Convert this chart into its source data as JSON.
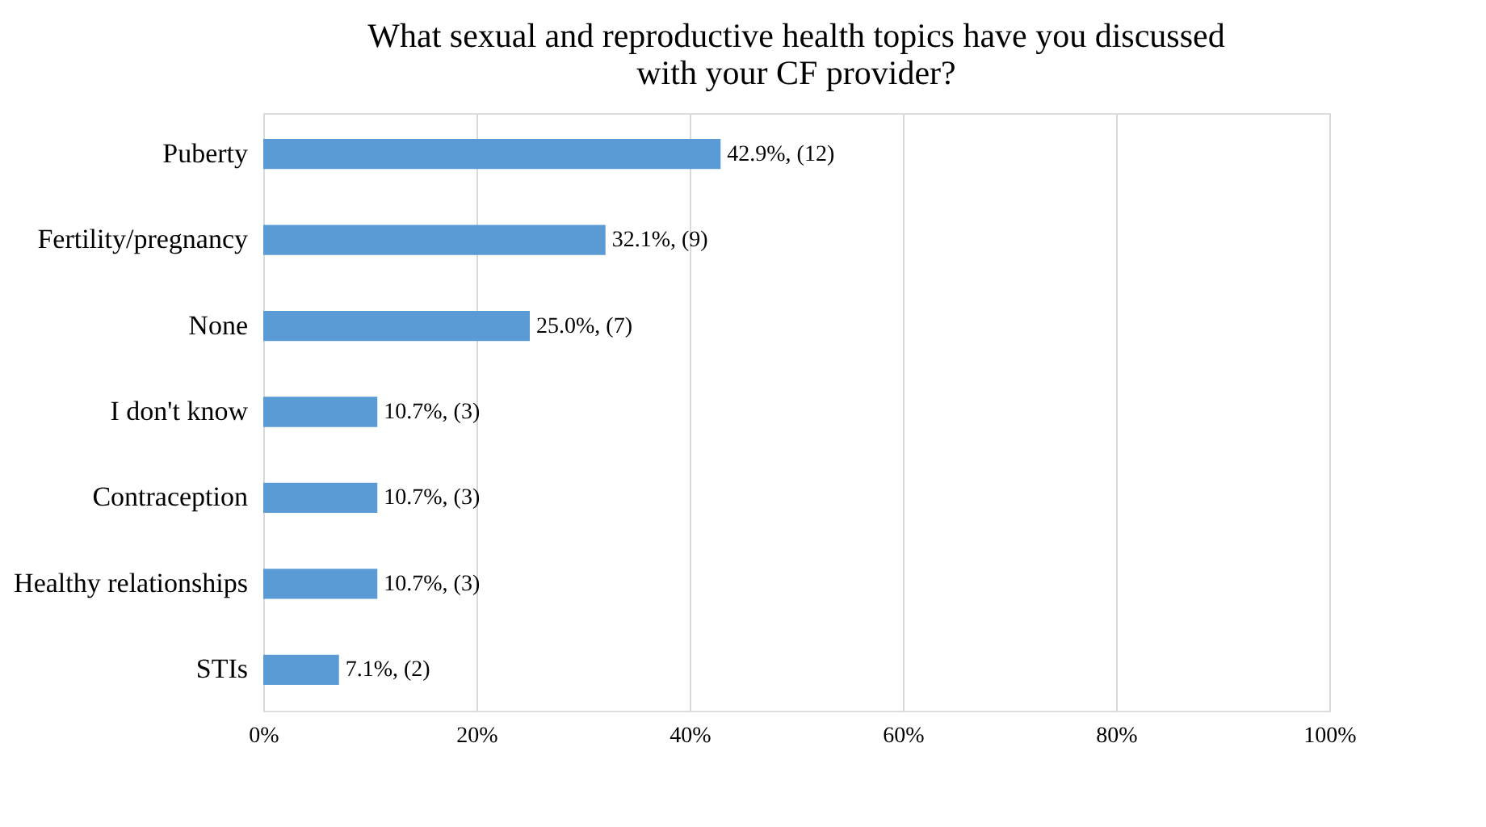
{
  "chart_data": {
    "type": "bar",
    "orientation": "horizontal",
    "title": "What sexual and reproductive health topics have you discussed with your CF provider?",
    "categories": [
      "Puberty",
      "Fertility/pregnancy",
      "None",
      "I don't know",
      "Contraception",
      "Healthy relationships",
      "STIs"
    ],
    "values": [
      42.9,
      32.1,
      25.0,
      10.7,
      10.7,
      10.7,
      7.1
    ],
    "value_labels": [
      "42.9%, (12)",
      "32.1%, (9)",
      "25.0%, (7)",
      "10.7%, (3)",
      "10.7%, (3)",
      "10.7%, (3)",
      "7.1%, (2)"
    ],
    "color": "#5b9bd5",
    "xlim": [
      0,
      100
    ],
    "xticks": [
      {
        "value": 0,
        "label": "0%"
      },
      {
        "value": 20,
        "label": "20%"
      },
      {
        "value": 40,
        "label": "40%"
      },
      {
        "value": 60,
        "label": "60%"
      },
      {
        "value": 80,
        "label": "80%"
      },
      {
        "value": 100,
        "label": "100%"
      }
    ],
    "grid": "x"
  }
}
